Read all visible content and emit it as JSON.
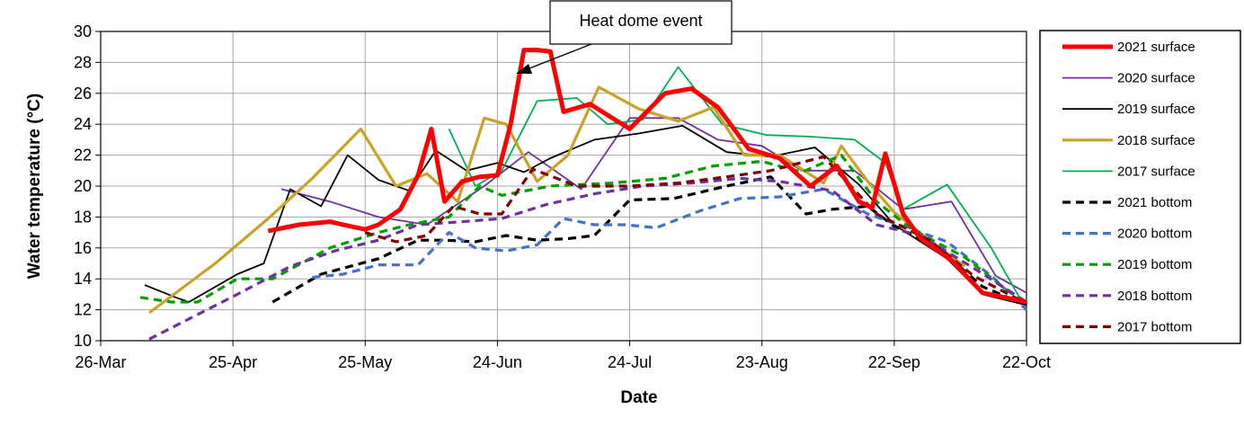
{
  "chart_data": {
    "type": "line",
    "xlabel": "Date",
    "ylabel": "Water temperature (°C)",
    "xlim": [
      "2021-03-26",
      "2021-10-22"
    ],
    "ylim": [
      10,
      30
    ],
    "x_ticks": [
      "26-Mar",
      "25-Apr",
      "25-May",
      "24-Jun",
      "24-Jul",
      "23-Aug",
      "22-Sep",
      "22-Oct"
    ],
    "y_ticks": [
      "10",
      "12",
      "14",
      "16",
      "18",
      "20",
      "22",
      "24",
      "26",
      "28",
      "30"
    ],
    "grid": true,
    "legend_position": "right",
    "annotation": "Heat dome event",
    "series": [
      {
        "name": "2021 surface",
        "color": "#ff0000",
        "dash": "solid",
        "weight": "thick",
        "x": [
          "2021-05-03",
          "2021-05-10",
          "2021-05-17",
          "2021-05-20",
          "2021-05-25",
          "2021-05-28",
          "2021-06-02",
          "2021-06-06",
          "2021-06-09",
          "2021-06-12",
          "2021-06-16",
          "2021-06-20",
          "2021-06-24",
          "2021-06-27",
          "2021-06-30",
          "2021-07-03",
          "2021-07-06",
          "2021-07-09",
          "2021-07-15",
          "2021-07-24",
          "2021-08-01",
          "2021-08-07",
          "2021-08-13",
          "2021-08-20",
          "2021-08-27",
          "2021-09-03",
          "2021-09-09",
          "2021-09-14",
          "2021-09-17",
          "2021-09-20",
          "2021-09-24",
          "2021-09-28",
          "2021-10-05",
          "2021-10-12",
          "2021-10-22"
        ],
        "y": [
          17.1,
          17.5,
          17.7,
          17.5,
          17.2,
          17.5,
          18.5,
          20.7,
          23.7,
          19.0,
          20.3,
          20.6,
          20.7,
          24.0,
          28.8,
          28.8,
          28.7,
          24.8,
          25.3,
          23.7,
          26.0,
          26.3,
          25.1,
          22.4,
          21.8,
          20.0,
          21.3,
          19.0,
          18.6,
          22.1,
          18.2,
          16.6,
          15.2,
          13.1,
          12.5
        ]
      },
      {
        "name": "2020 surface",
        "color": "#7030a0",
        "dash": "solid",
        "weight": "thin",
        "x": [
          "2021-05-06",
          "2021-05-17",
          "2021-05-28",
          "2021-06-08",
          "2021-06-21",
          "2021-07-01",
          "2021-07-13",
          "2021-07-24",
          "2021-08-04",
          "2021-08-13",
          "2021-08-23",
          "2021-09-01",
          "2021-09-13",
          "2021-09-24",
          "2021-10-05",
          "2021-10-15",
          "2021-10-22"
        ],
        "y": [
          19.8,
          19.0,
          18.0,
          17.5,
          20.0,
          22.2,
          19.8,
          24.4,
          24.4,
          23.0,
          22.6,
          21.0,
          21.0,
          18.5,
          19.0,
          14.2,
          13.1
        ]
      },
      {
        "name": "2019 surface",
        "color": "#000000",
        "dash": "solid",
        "weight": "thin",
        "x": [
          "2021-04-05",
          "2021-04-12",
          "2021-04-15",
          "2021-04-26",
          "2021-05-02",
          "2021-05-08",
          "2021-05-15",
          "2021-05-21",
          "2021-05-28",
          "2021-06-04",
          "2021-06-10",
          "2021-06-17",
          "2021-06-24",
          "2021-06-30",
          "2021-07-06",
          "2021-07-16",
          "2021-07-26",
          "2021-08-05",
          "2021-08-15",
          "2021-08-25",
          "2021-09-04",
          "2021-09-14",
          "2021-09-22",
          "2021-10-04",
          "2021-10-12",
          "2021-10-22"
        ],
        "y": [
          13.6,
          12.8,
          12.5,
          14.3,
          15.0,
          19.8,
          18.7,
          22.0,
          20.4,
          19.7,
          22.3,
          21.0,
          21.5,
          20.9,
          21.8,
          23.0,
          23.4,
          23.9,
          22.2,
          21.9,
          22.5,
          20.1,
          17.5,
          15.3,
          13.0,
          12.3
        ]
      },
      {
        "name": "2018 surface",
        "color": "#c9a227",
        "dash": "solid",
        "weight": "thick",
        "x": [
          "2021-04-06",
          "2021-04-21",
          "2021-05-03",
          "2021-05-13",
          "2021-05-24",
          "2021-06-01",
          "2021-06-08",
          "2021-06-15",
          "2021-06-21",
          "2021-06-26",
          "2021-07-03",
          "2021-07-10",
          "2021-07-17",
          "2021-07-26",
          "2021-08-04",
          "2021-08-12",
          "2021-08-19",
          "2021-08-27",
          "2021-09-06",
          "2021-09-10",
          "2021-09-16",
          "2021-09-22",
          "2021-09-30",
          "2021-10-08"
        ],
        "y": [
          11.8,
          15.0,
          17.9,
          20.5,
          23.7,
          20.0,
          20.8,
          19.0,
          24.4,
          24.0,
          20.3,
          22.0,
          26.4,
          25.0,
          24.2,
          25.1,
          22.0,
          22.0,
          20.2,
          22.6,
          20.3,
          18.3,
          16.5,
          14.8
        ]
      },
      {
        "name": "2017 surface",
        "color": "#00b050",
        "dash": "solid",
        "weight": "thin",
        "x": [
          "2021-06-13",
          "2021-06-19",
          "2021-06-25",
          "2021-07-03",
          "2021-07-12",
          "2021-07-19",
          "2021-07-27",
          "2021-08-04",
          "2021-08-14",
          "2021-08-24",
          "2021-09-03",
          "2021-09-13",
          "2021-09-20",
          "2021-09-24",
          "2021-10-04",
          "2021-10-14",
          "2021-10-22"
        ],
        "y": [
          23.7,
          20.0,
          21.0,
          25.5,
          25.7,
          24.0,
          24.3,
          27.7,
          24.0,
          23.3,
          23.2,
          23.0,
          21.5,
          18.5,
          20.1,
          16.0,
          12.0
        ]
      },
      {
        "name": "2021 bottom",
        "color": "#000000",
        "dash": "dash",
        "weight": "thick",
        "x": [
          "2021-05-04",
          "2021-05-15",
          "2021-05-28",
          "2021-06-06",
          "2021-06-12",
          "2021-06-19",
          "2021-06-26",
          "2021-07-03",
          "2021-07-10",
          "2021-07-16",
          "2021-07-24",
          "2021-08-03",
          "2021-08-15",
          "2021-08-25",
          "2021-09-02",
          "2021-09-08",
          "2021-09-16",
          "2021-09-22",
          "2021-10-02",
          "2021-10-12",
          "2021-10-22"
        ],
        "y": [
          12.5,
          14.3,
          15.3,
          16.5,
          16.5,
          16.4,
          16.8,
          16.5,
          16.6,
          16.8,
          19.1,
          19.2,
          20.0,
          20.6,
          18.2,
          18.5,
          18.7,
          17.4,
          16.0,
          13.5,
          12.3
        ]
      },
      {
        "name": "2020 bottom",
        "color": "#4472c4",
        "dash": "dash",
        "weight": "thick",
        "x": [
          "2021-05-13",
          "2021-05-20",
          "2021-05-28",
          "2021-06-06",
          "2021-06-13",
          "2021-06-19",
          "2021-06-26",
          "2021-07-03",
          "2021-07-09",
          "2021-07-16",
          "2021-07-23",
          "2021-07-30",
          "2021-08-09",
          "2021-08-18",
          "2021-08-27",
          "2021-09-06",
          "2021-09-16",
          "2021-09-26",
          "2021-10-04",
          "2021-10-14",
          "2021-10-22"
        ],
        "y": [
          14.1,
          14.3,
          14.9,
          14.9,
          17.0,
          16.0,
          15.8,
          16.2,
          17.9,
          17.5,
          17.5,
          17.3,
          18.4,
          19.2,
          19.3,
          19.8,
          18.2,
          17.2,
          16.4,
          14.2,
          12.0
        ]
      },
      {
        "name": "2019 bottom",
        "color": "#00a000",
        "dash": "dash",
        "weight": "thick",
        "x": [
          "2021-04-04",
          "2021-04-11",
          "2021-04-17",
          "2021-04-26",
          "2021-05-04",
          "2021-05-17",
          "2021-05-28",
          "2021-06-04",
          "2021-06-13",
          "2021-06-20",
          "2021-06-25",
          "2021-07-06",
          "2021-07-20",
          "2021-08-01",
          "2021-08-12",
          "2021-08-23",
          "2021-09-01",
          "2021-09-10",
          "2021-09-18",
          "2021-09-26",
          "2021-10-08",
          "2021-10-22"
        ],
        "y": [
          12.8,
          12.5,
          12.5,
          14.0,
          14.0,
          16.0,
          17.0,
          17.5,
          18.0,
          20.0,
          19.4,
          20.0,
          20.2,
          20.5,
          21.3,
          21.6,
          20.9,
          22.0,
          19.0,
          17.2,
          15.4,
          12.3
        ]
      },
      {
        "name": "2018 bottom",
        "color": "#7030a0",
        "dash": "dash",
        "weight": "thick",
        "x": [
          "2021-04-06",
          "2021-04-26",
          "2021-05-08",
          "2021-05-18",
          "2021-05-28",
          "2021-06-06",
          "2021-06-16",
          "2021-06-25",
          "2021-07-05",
          "2021-07-16",
          "2021-07-27",
          "2021-08-07",
          "2021-08-18",
          "2021-08-27",
          "2021-09-08",
          "2021-09-18",
          "2021-09-28",
          "2021-10-10",
          "2021-10-22"
        ],
        "y": [
          10.1,
          13.0,
          14.8,
          15.8,
          16.5,
          17.5,
          17.7,
          17.9,
          18.8,
          19.5,
          20.0,
          20.2,
          20.5,
          20.3,
          19.7,
          17.5,
          16.8,
          14.7,
          12.5
        ]
      },
      {
        "name": "2017 bottom",
        "color": "#800000",
        "dash": "dash",
        "weight": "thick",
        "x": [
          "2021-05-25",
          "2021-06-01",
          "2021-06-08",
          "2021-06-14",
          "2021-06-20",
          "2021-06-25",
          "2021-07-02",
          "2021-07-12",
          "2021-07-24",
          "2021-08-04",
          "2021-08-15",
          "2021-08-25",
          "2021-09-06",
          "2021-09-18",
          "2021-09-30",
          "2021-10-10",
          "2021-10-22"
        ],
        "y": [
          17.0,
          16.4,
          16.8,
          18.7,
          18.2,
          18.2,
          21.1,
          20.0,
          20.0,
          20.2,
          20.6,
          21.0,
          21.9,
          18.2,
          16.5,
          14.2,
          12.4
        ]
      }
    ]
  }
}
